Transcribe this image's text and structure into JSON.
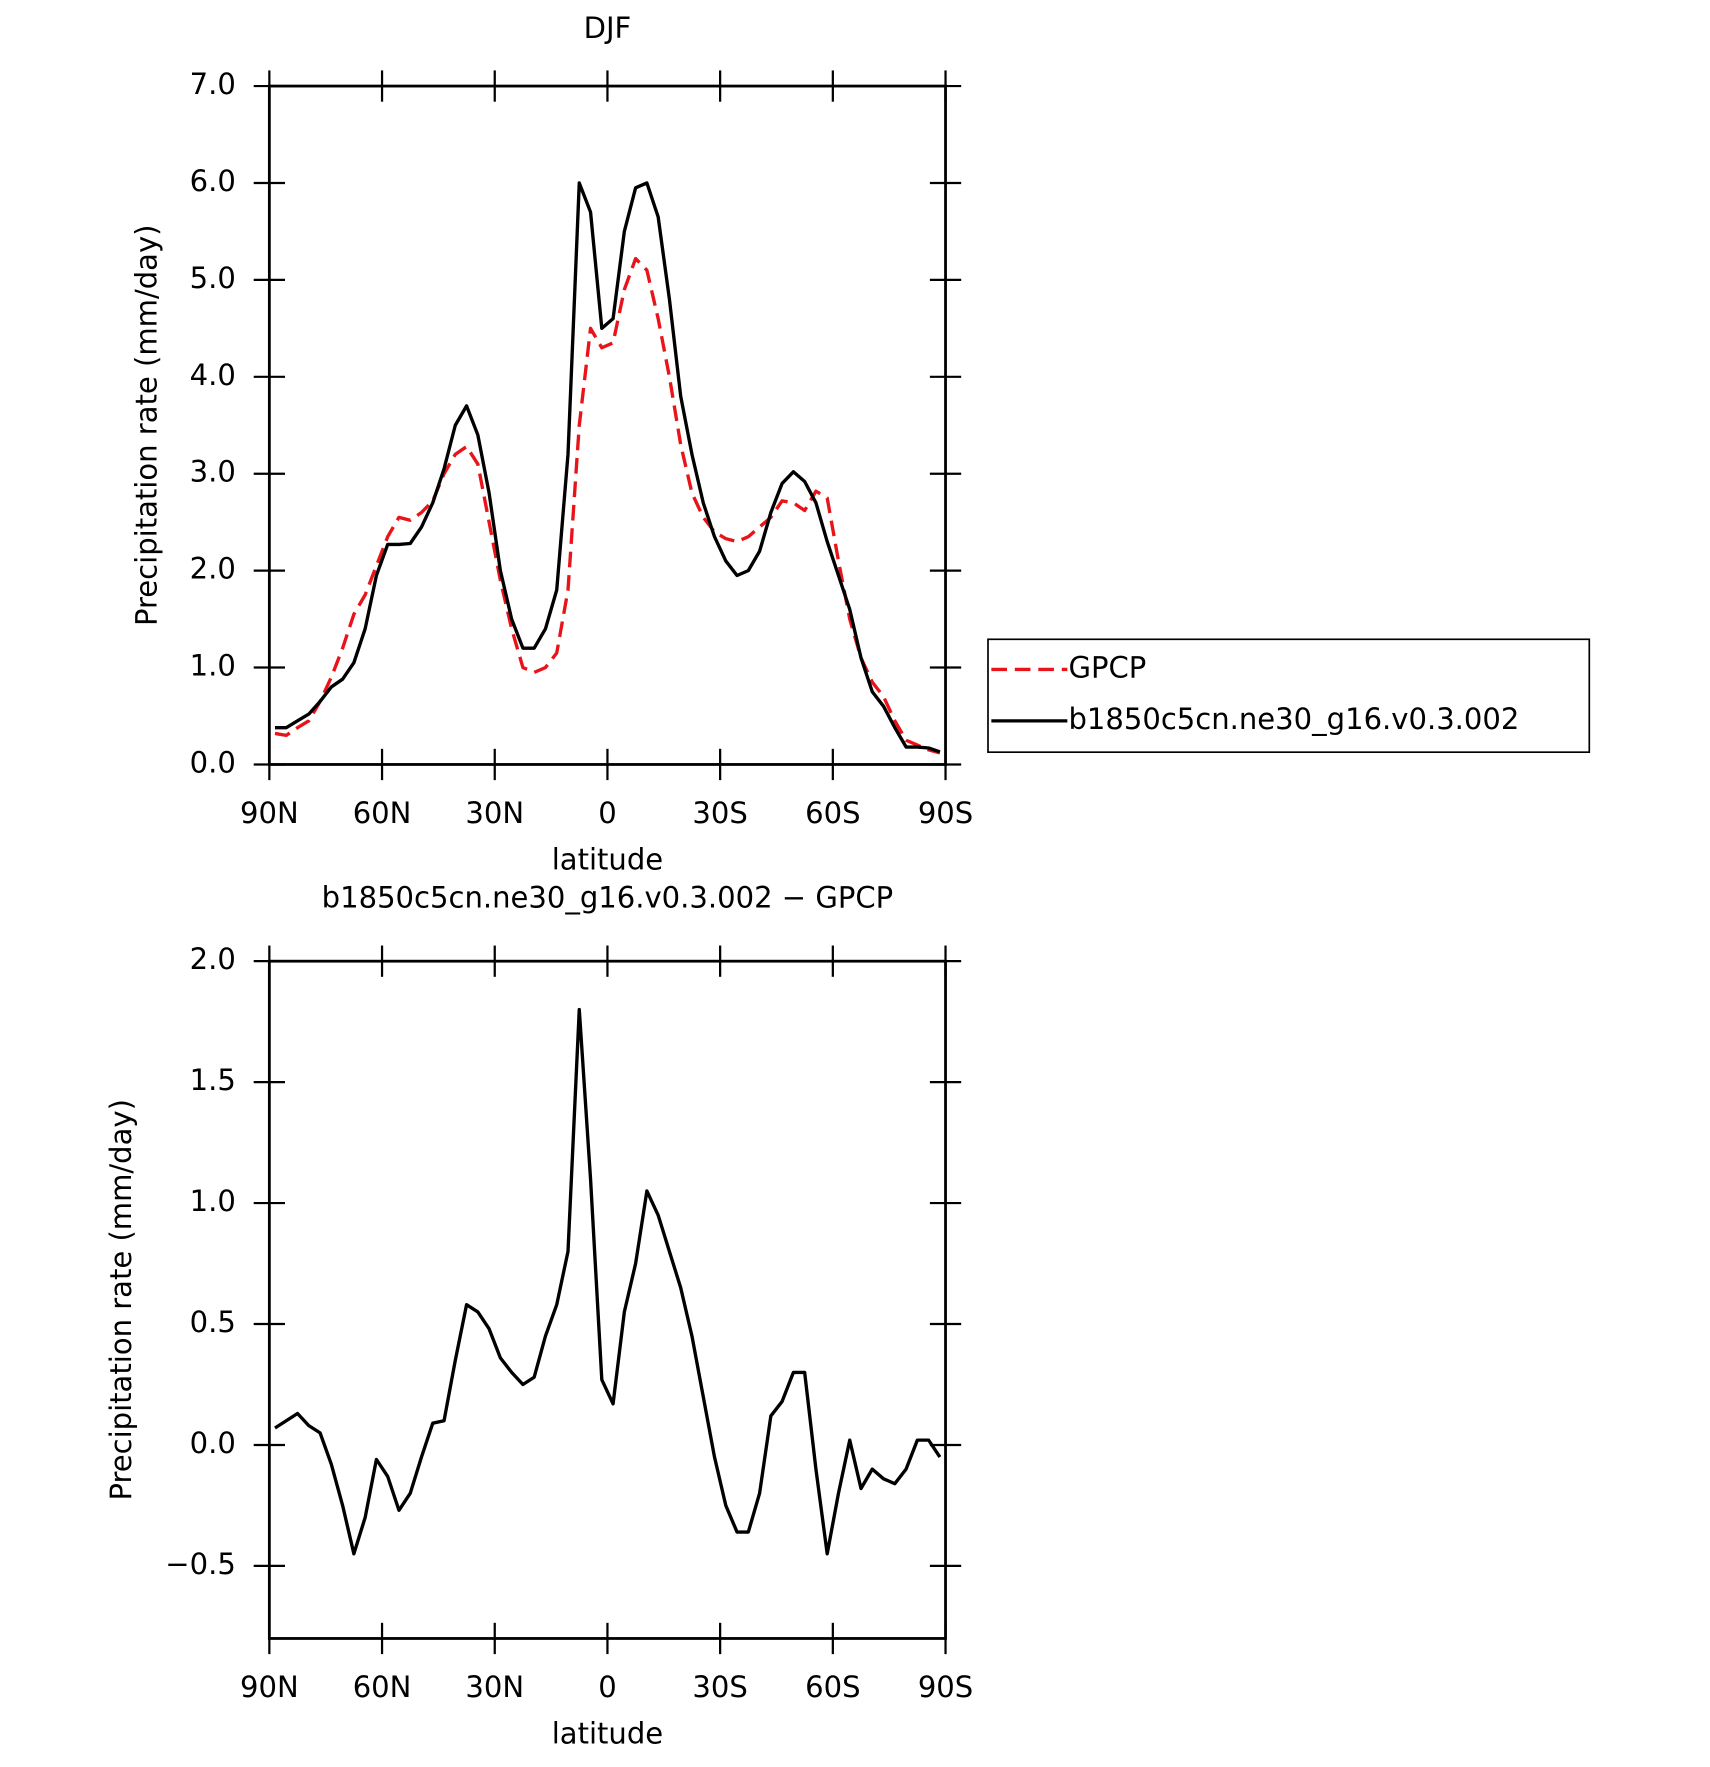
{
  "chart_data": [
    {
      "type": "line",
      "title": "DJF",
      "xlabel": "latitude",
      "ylabel": "Precipitation rate (mm/day)",
      "x": [
        88.5,
        85.5,
        82.5,
        79.5,
        76.5,
        73.5,
        70.5,
        67.5,
        64.5,
        61.5,
        58.5,
        55.5,
        52.5,
        49.5,
        46.5,
        43.5,
        40.5,
        37.5,
        34.5,
        31.5,
        28.5,
        25.5,
        22.5,
        19.5,
        16.5,
        13.5,
        10.5,
        7.5,
        4.5,
        1.5,
        -1.5,
        -4.5,
        -7.5,
        -10.5,
        -13.5,
        -16.5,
        -19.5,
        -22.5,
        -25.5,
        -28.5,
        -31.5,
        -34.5,
        -37.5,
        -40.5,
        -43.5,
        -46.5,
        -49.5,
        -52.5,
        -55.5,
        -58.5,
        -61.5,
        -64.5,
        -67.5,
        -70.5,
        -73.5,
        -76.5,
        -79.5,
        -82.5,
        -85.5,
        -88.5
      ],
      "xlim": [
        90,
        -90
      ],
      "xticks": [
        {
          "value": 90,
          "label": "90N"
        },
        {
          "value": 60,
          "label": "60N"
        },
        {
          "value": 30,
          "label": "30N"
        },
        0,
        {
          "value": -30,
          "label": "30S"
        },
        {
          "value": -60,
          "label": "60S"
        },
        {
          "value": -90,
          "label": "90S"
        }
      ],
      "ylim": [
        0,
        7
      ],
      "yticks": [
        {
          "value": 0,
          "label": "0.0"
        },
        {
          "value": 1,
          "label": "1.0"
        },
        {
          "value": 2,
          "label": "2.0"
        },
        {
          "value": 3,
          "label": "3.0"
        },
        {
          "value": 4,
          "label": "4.0"
        },
        {
          "value": 5,
          "label": "5.0"
        },
        {
          "value": 6,
          "label": "6.0"
        },
        {
          "value": 7,
          "label": "7.0"
        }
      ],
      "legend": "right",
      "series": [
        {
          "name": "GPCP",
          "color": "#e8141a",
          "style": "dashed",
          "values": [
            0.32,
            0.3,
            0.38,
            0.45,
            0.65,
            0.9,
            1.2,
            1.55,
            1.75,
            2.05,
            2.35,
            2.55,
            2.52,
            2.6,
            2.72,
            3.0,
            3.2,
            3.28,
            3.1,
            2.5,
            1.9,
            1.4,
            1.0,
            0.95,
            1.0,
            1.15,
            1.8,
            3.5,
            4.5,
            4.3,
            4.35,
            4.9,
            5.22,
            5.1,
            4.6,
            4.0,
            3.3,
            2.8,
            2.55,
            2.4,
            2.33,
            2.3,
            2.35,
            2.45,
            2.55,
            2.72,
            2.7,
            2.62,
            2.82,
            2.75,
            2.1,
            1.5,
            1.1,
            0.85,
            0.7,
            0.45,
            0.25,
            0.2,
            0.15,
            0.12
          ]
        },
        {
          "name": "b1850c5cn.ne30_g16.v0.3.002",
          "color": "#000000",
          "style": "solid",
          "values": [
            0.38,
            0.38,
            0.45,
            0.52,
            0.65,
            0.8,
            0.88,
            1.05,
            1.4,
            1.95,
            2.27,
            2.27,
            2.28,
            2.45,
            2.7,
            3.05,
            3.5,
            3.7,
            3.4,
            2.8,
            2.0,
            1.5,
            1.2,
            1.2,
            1.4,
            1.8,
            3.2,
            6.0,
            5.7,
            4.5,
            4.6,
            5.5,
            5.95,
            6.0,
            5.65,
            4.8,
            3.8,
            3.2,
            2.7,
            2.35,
            2.1,
            1.95,
            2.0,
            2.2,
            2.6,
            2.9,
            3.02,
            2.92,
            2.7,
            2.3,
            1.95,
            1.6,
            1.1,
            0.75,
            0.6,
            0.38,
            0.18,
            0.18,
            0.17,
            0.13
          ]
        }
      ]
    },
    {
      "type": "line",
      "title": "b1850c5cn.ne30_g16.v0.3.002 − GPCP",
      "xlabel": "latitude",
      "ylabel": "Precipitation rate (mm/day)",
      "x": [
        88.5,
        85.5,
        82.5,
        79.5,
        76.5,
        73.5,
        70.5,
        67.5,
        64.5,
        61.5,
        58.5,
        55.5,
        52.5,
        49.5,
        46.5,
        43.5,
        40.5,
        37.5,
        34.5,
        31.5,
        28.5,
        25.5,
        22.5,
        19.5,
        16.5,
        13.5,
        10.5,
        7.5,
        4.5,
        1.5,
        -1.5,
        -4.5,
        -7.5,
        -10.5,
        -13.5,
        -16.5,
        -19.5,
        -22.5,
        -25.5,
        -28.5,
        -31.5,
        -34.5,
        -37.5,
        -40.5,
        -43.5,
        -46.5,
        -49.5,
        -52.5,
        -55.5,
        -58.5,
        -61.5,
        -64.5,
        -67.5,
        -70.5,
        -73.5,
        -76.5,
        -79.5,
        -82.5,
        -85.5,
        -88.5
      ],
      "xlim": [
        90,
        -90
      ],
      "xticks": [
        {
          "value": 90,
          "label": "90N"
        },
        {
          "value": 60,
          "label": "60N"
        },
        {
          "value": 30,
          "label": "30N"
        },
        0,
        {
          "value": -30,
          "label": "30S"
        },
        {
          "value": -60,
          "label": "60S"
        },
        {
          "value": -90,
          "label": "90S"
        }
      ],
      "ylim": [
        -0.8,
        2.0
      ],
      "yticks": [
        {
          "value": -0.5,
          "label": "−0.5"
        },
        {
          "value": 0,
          "label": "0.0"
        },
        0.5,
        {
          "value": 1,
          "label": "1.0"
        },
        1.5,
        {
          "value": 2,
          "label": "2.0"
        }
      ],
      "series": [
        {
          "color": "#000000",
          "style": "solid",
          "values": [
            0.07,
            0.1,
            0.13,
            0.08,
            0.05,
            -0.08,
            -0.25,
            -0.45,
            -0.3,
            -0.06,
            -0.13,
            -0.27,
            -0.2,
            -0.05,
            0.09,
            0.1,
            0.35,
            0.58,
            0.55,
            0.48,
            0.36,
            0.3,
            0.25,
            0.28,
            0.45,
            0.58,
            0.8,
            1.8,
            1.1,
            0.27,
            0.17,
            0.55,
            0.75,
            1.05,
            0.95,
            0.8,
            0.65,
            0.45,
            0.2,
            -0.05,
            -0.25,
            -0.36,
            -0.36,
            -0.2,
            0.12,
            0.18,
            0.3,
            0.3,
            -0.1,
            -0.45,
            -0.2,
            0.02,
            -0.18,
            -0.1,
            -0.14,
            -0.16,
            -0.1,
            0.02,
            0.02,
            -0.05
          ]
        }
      ]
    }
  ]
}
